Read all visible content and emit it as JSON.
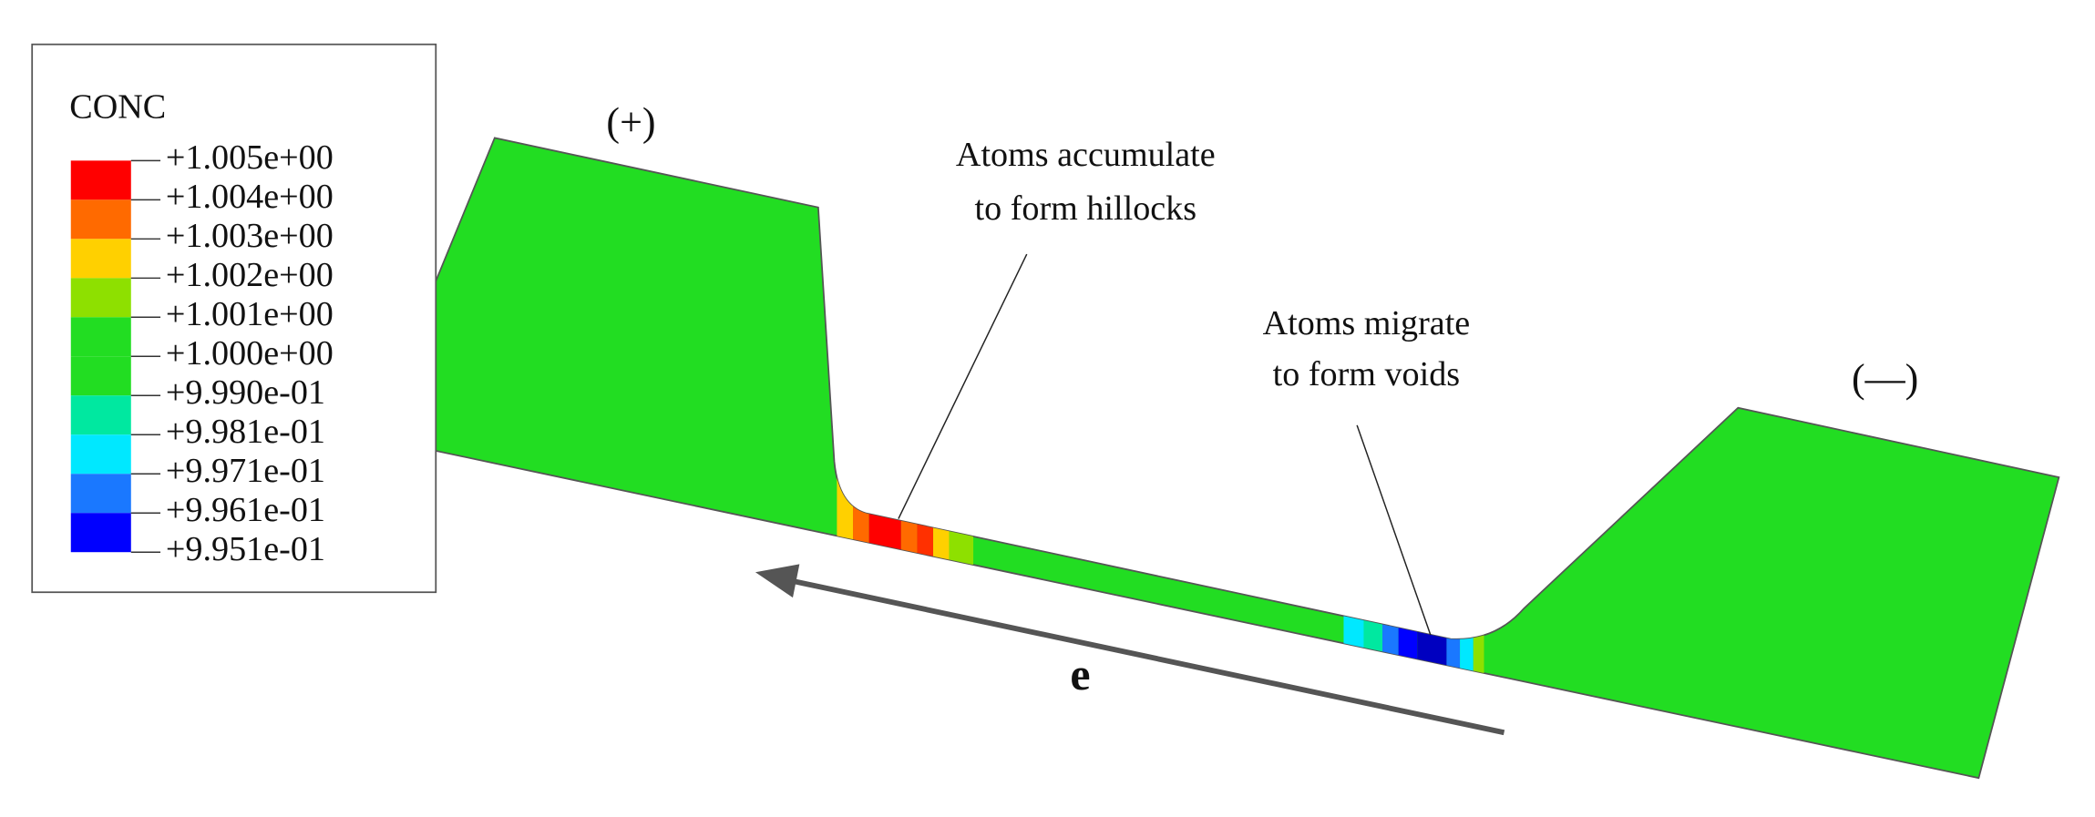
{
  "legend": {
    "title": "CONC",
    "labels": [
      "+1.005e+00",
      "+1.004e+00",
      "+1.003e+00",
      "+1.002e+00",
      "+1.001e+00",
      "+1.000e+00",
      "+9.990e-01",
      "+9.981e-01",
      "+9.971e-01",
      "+9.961e-01",
      "+9.951e-01"
    ],
    "colors": [
      "#ff0000",
      "#ff6a00",
      "#ffd000",
      "#8ee000",
      "#22dd22",
      "#22dd22",
      "#00e8a0",
      "#00e8ff",
      "#1a78ff",
      "#0000ff"
    ]
  },
  "annotations": {
    "anode": "(+)",
    "cathode": "(—)",
    "hillocks": [
      "Atoms accumulate",
      "to form hillocks"
    ],
    "voids": [
      "Atoms migrate",
      "to form voids"
    ],
    "electron": "e"
  }
}
